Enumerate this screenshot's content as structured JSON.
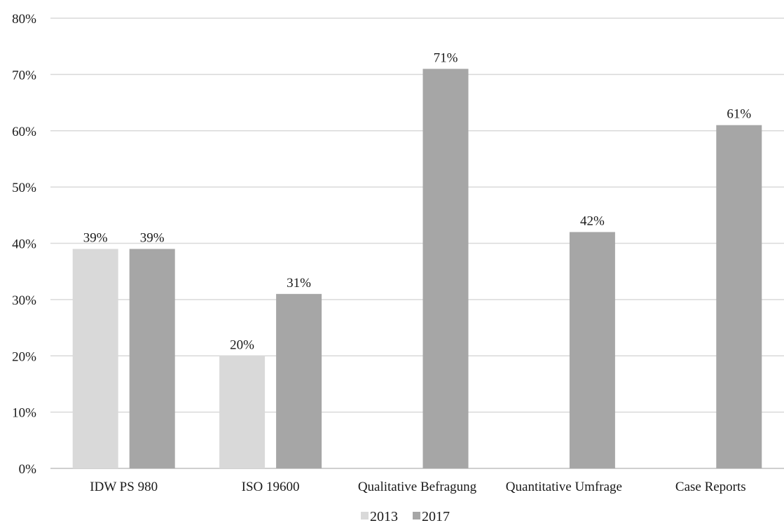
{
  "chart_data": {
    "type": "bar",
    "categories": [
      "IDW PS 980",
      "ISO 19600",
      "Qualitative Befragung",
      "Quantitative Umfrage",
      "Case Reports"
    ],
    "series": [
      {
        "name": "2013",
        "values": [
          39,
          20,
          null,
          null,
          null
        ],
        "color": "#d9d9d9"
      },
      {
        "name": "2017",
        "values": [
          39,
          31,
          71,
          42,
          61
        ],
        "color": "#a6a6a6"
      }
    ],
    "ylim": [
      0,
      80
    ],
    "yticks": [
      0,
      10,
      20,
      30,
      40,
      50,
      60,
      70,
      80
    ],
    "ytick_labels": [
      "0%",
      "10%",
      "20%",
      "30%",
      "40%",
      "50%",
      "60%",
      "70%",
      "80%"
    ],
    "data_labels": [
      [
        "39%",
        "20%",
        null,
        null,
        null
      ],
      [
        "39%",
        "31%",
        "71%",
        "42%",
        "61%"
      ]
    ],
    "grid": true,
    "legend_position": "bottom",
    "title": "",
    "xlabel": "",
    "ylabel": ""
  }
}
